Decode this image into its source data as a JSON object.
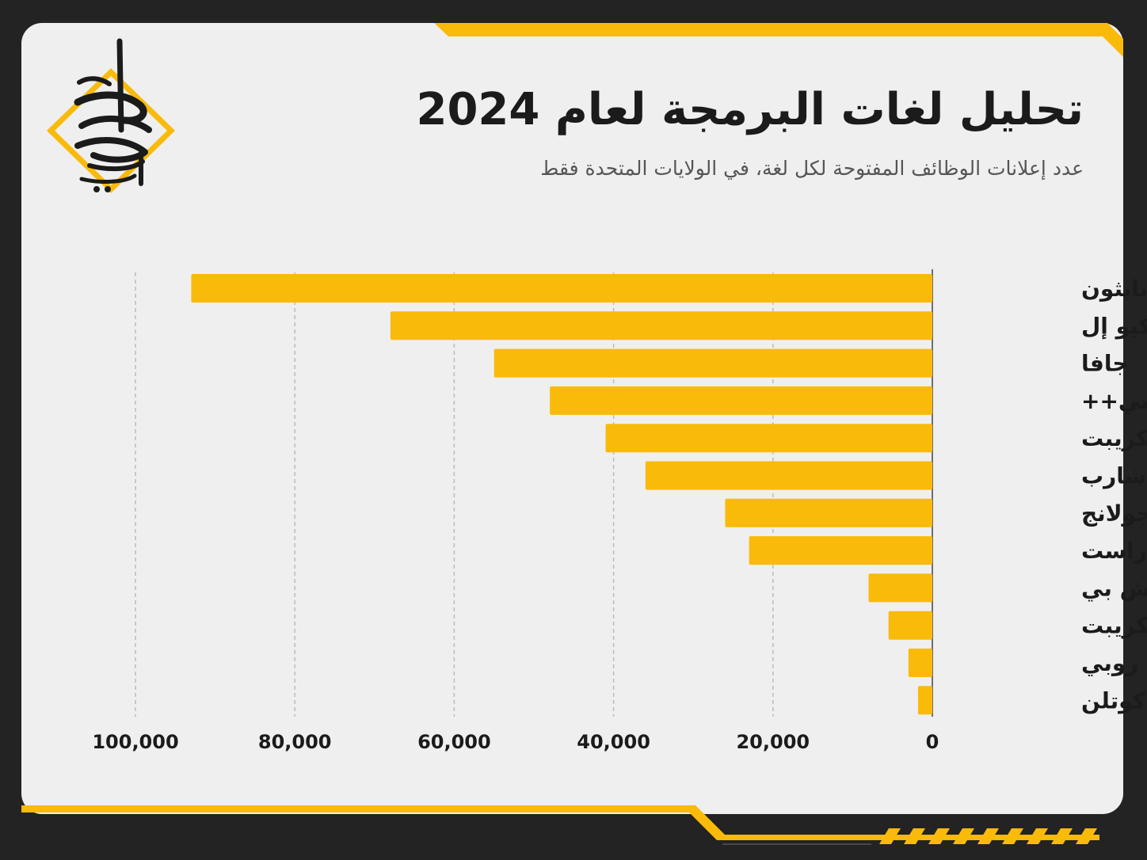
{
  "header": {
    "title": "تحليل لغات البرمجة لعام 2024",
    "subtitle": "عدد إعلانات الوظائف المفتوحة لكل لغة، في الولايات المتحدة فقط"
  },
  "logo": {
    "icon": "calligraphy-logo-icon"
  },
  "colors": {
    "accent": "#F9BA0A",
    "background": "#232323",
    "card": "#EFEFEF",
    "text": "#1B1B1B",
    "subtext": "#555555",
    "grid": "#BBBBBB"
  },
  "chart_data": {
    "type": "bar",
    "orientation": "horizontal",
    "direction": "right-to-left",
    "categories": [
      "بايثون",
      "إس كيو إل",
      "جافا",
      "سي++",
      "جافا سكريبت",
      "سي شارب",
      "جولانج",
      "راست",
      "بي إتش بي",
      "تايب سكريبت",
      "روبي",
      "كوتلن"
    ],
    "values": [
      93000,
      68000,
      55000,
      48000,
      41000,
      36000,
      26000,
      23000,
      8000,
      5500,
      3000,
      1800
    ],
    "xlim": [
      0,
      100000
    ],
    "ticks": [
      0,
      20000,
      40000,
      60000,
      80000,
      100000
    ],
    "tick_labels": [
      "0",
      "20,000",
      "40,000",
      "60,000",
      "80,000",
      "100,000"
    ],
    "grid": true,
    "grid_style": "dashed",
    "bar_color": "#F9BA0A"
  }
}
